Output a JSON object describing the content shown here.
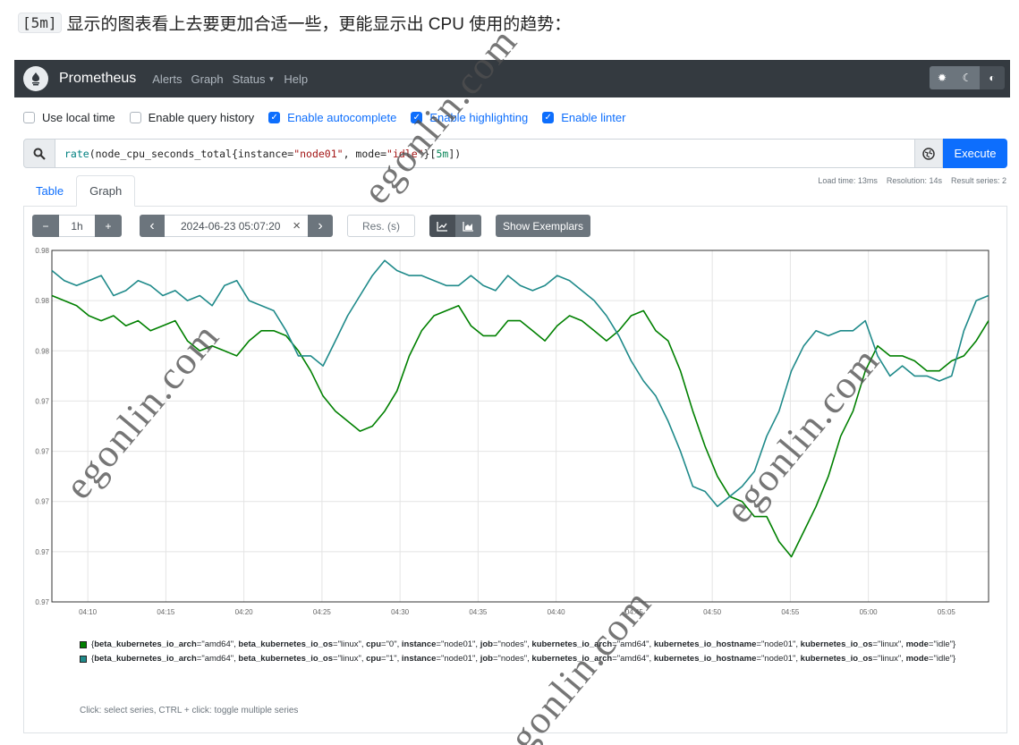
{
  "caption": {
    "code": "[5m]",
    "text": "显示的图表看上去要更加合适一些，更能显示出 CPU 使用的趋势："
  },
  "navbar": {
    "brand": "Prometheus",
    "links": [
      "Alerts",
      "Graph",
      "Status",
      "Help"
    ],
    "theme_icons": [
      "gear-icon",
      "moon-icon",
      "half-circle-icon"
    ]
  },
  "options": [
    {
      "label": "Use local time",
      "checked": false
    },
    {
      "label": "Enable query history",
      "checked": false
    },
    {
      "label": "Enable autocomplete",
      "checked": true
    },
    {
      "label": "Enable highlighting",
      "checked": true
    },
    {
      "label": "Enable linter",
      "checked": true
    }
  ],
  "query": {
    "fn": "rate",
    "p1": "(node_cpu_seconds_total{instance=",
    "s1": "\"node01\"",
    "p2": ", mode=",
    "s2": "\"idle\"",
    "p3": "}[",
    "d": "5m",
    "p4": "])",
    "execute_label": "Execute"
  },
  "stats": {
    "load_time": "Load time: 13ms",
    "resolution": "Resolution: 14s",
    "result_series": "Result series: 2"
  },
  "tabs": [
    {
      "label": "Table",
      "active": false
    },
    {
      "label": "Graph",
      "active": true
    }
  ],
  "controls": {
    "minus": "−",
    "range": "1h",
    "plus": "+",
    "prev": "‹",
    "end_time": "2024-06-23 05:07:20",
    "clear": "×",
    "next": "›",
    "res_placeholder": "Res. (s)",
    "exemplars": "Show Exemplars"
  },
  "chart_data": {
    "type": "line",
    "x_ticks": [
      "04:10",
      "04:15",
      "04:20",
      "04:25",
      "04:30",
      "04:35",
      "04:40",
      "04:45",
      "04:50",
      "04:55",
      "05:00",
      "05:05"
    ],
    "y_ticks": [
      "0.98",
      "0.98",
      "0.98",
      "0.97",
      "0.97",
      "0.97",
      "0.97",
      "0.97"
    ],
    "x_minutes_start": -2.3,
    "x_minutes_end": 57.7,
    "y_range": [
      0.9714,
      0.9784
    ],
    "grid": true,
    "series": [
      {
        "color": "#008000",
        "values": [
          0.9775,
          0.9774,
          0.9773,
          0.9771,
          0.977,
          0.9771,
          0.9769,
          0.977,
          0.9768,
          0.9769,
          0.977,
          0.9766,
          0.9764,
          0.9765,
          0.9764,
          0.9763,
          0.9766,
          0.9768,
          0.9768,
          0.9767,
          0.9764,
          0.976,
          0.9755,
          0.9752,
          0.975,
          0.9748,
          0.9749,
          0.9752,
          0.9756,
          0.9763,
          0.9768,
          0.9771,
          0.9772,
          0.9773,
          0.9769,
          0.9767,
          0.9767,
          0.977,
          0.977,
          0.9768,
          0.9766,
          0.9769,
          0.9771,
          0.977,
          0.9768,
          0.9766,
          0.9768,
          0.9771,
          0.9772,
          0.9768,
          0.9766,
          0.976,
          0.9752,
          0.9745,
          0.9739,
          0.9735,
          0.9734,
          0.9731,
          0.9731,
          0.9726,
          0.9723,
          0.9728,
          0.9733,
          0.9739,
          0.9747,
          0.9752,
          0.976,
          0.9765,
          0.9763,
          0.9763,
          0.9762,
          0.976,
          0.976,
          0.9762,
          0.9763,
          0.9766,
          0.977
        ]
      },
      {
        "color": "#1f8a8a",
        "values": [
          0.978,
          0.9778,
          0.9777,
          0.9778,
          0.9779,
          0.9775,
          0.9776,
          0.9778,
          0.9777,
          0.9775,
          0.9776,
          0.9774,
          0.9775,
          0.9773,
          0.9777,
          0.9778,
          0.9774,
          0.9773,
          0.9772,
          0.9768,
          0.9763,
          0.9763,
          0.9761,
          0.9766,
          0.9771,
          0.9775,
          0.9779,
          0.9782,
          0.978,
          0.9779,
          0.9779,
          0.9778,
          0.9777,
          0.9777,
          0.9779,
          0.9777,
          0.9776,
          0.9779,
          0.9777,
          0.9776,
          0.9777,
          0.9779,
          0.9778,
          0.9776,
          0.9774,
          0.9771,
          0.9767,
          0.9762,
          0.9758,
          0.9755,
          0.975,
          0.9744,
          0.9737,
          0.9736,
          0.9733,
          0.9735,
          0.9737,
          0.974,
          0.9747,
          0.9752,
          0.976,
          0.9765,
          0.9768,
          0.9767,
          0.9768,
          0.9768,
          0.977,
          0.9763,
          0.9759,
          0.9761,
          0.9759,
          0.9759,
          0.9758,
          0.9759,
          0.9768,
          0.9774,
          0.9775
        ]
      }
    ],
    "legend": [
      {
        "color": "#008000",
        "bold_key1": "beta_kubernetes_io_arch",
        "v1": "=\"amd64\", ",
        "bold_key2": "beta_kubernetes_io_os",
        "v2": "=\"linux\", ",
        "bold_key3": "cpu",
        "v3": "=\"0\", ",
        "bold_key4": "instance",
        "v4": "=\"node01\", ",
        "bold_key5": "job",
        "v5": "=\"nodes\", ",
        "bold_key6": "kubernetes_io_arch",
        "v6": "=\"amd64\", ",
        "bold_key7": "kubernetes_io_hostname",
        "v7": "=\"node01\", ",
        "bold_key8": "kubernetes_io_os",
        "v8": "=\"linux\", ",
        "bold_key9": "mode",
        "v9": "=\"idle\"}"
      },
      {
        "color": "#1f8a8a",
        "bold_key1": "beta_kubernetes_io_arch",
        "v1": "=\"amd64\", ",
        "bold_key2": "beta_kubernetes_io_os",
        "v2": "=\"linux\", ",
        "bold_key3": "cpu",
        "v3": "=\"1\", ",
        "bold_key4": "instance",
        "v4": "=\"node01\", ",
        "bold_key5": "job",
        "v5": "=\"nodes\", ",
        "bold_key6": "kubernetes_io_arch",
        "v6": "=\"amd64\", ",
        "bold_key7": "kubernetes_io_hostname",
        "v7": "=\"node01\", ",
        "bold_key8": "kubernetes_io_os",
        "v8": "=\"linux\", ",
        "bold_key9": "mode",
        "v9": "=\"idle\"}"
      }
    ],
    "hint": "Click: select series, CTRL + click: toggle multiple series"
  },
  "watermark": "egonlin.com"
}
